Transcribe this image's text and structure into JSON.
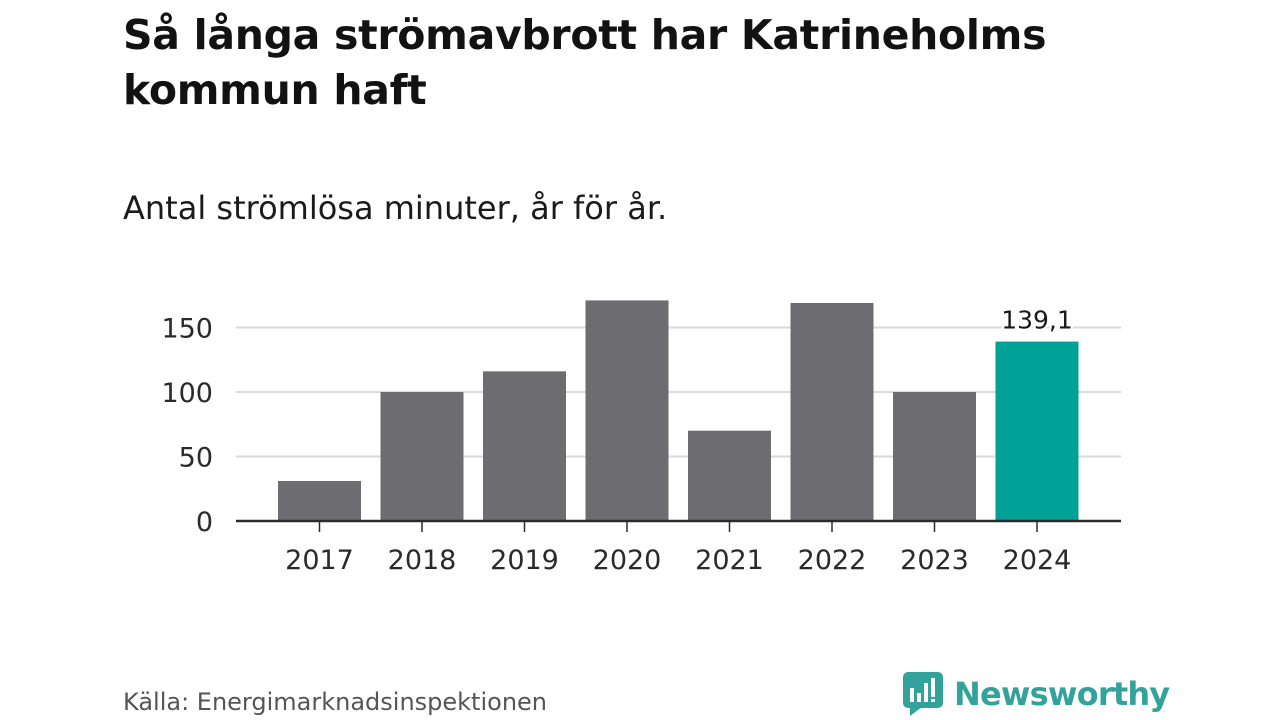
{
  "header": {
    "title": "Så långa strömavbrott har Katrineholms kommun haft",
    "subtitle": "Antal strömlösa minuter, år för år."
  },
  "footer": {
    "source": "Källa: Energimarknadsinspektionen",
    "brand": "Newsworthy"
  },
  "colors": {
    "bar": "#6d6c71",
    "highlight": "#00a196",
    "grid": "#d9d9d9",
    "axis": "#2b2b2b",
    "brand": "#33a29b"
  },
  "icons": {
    "brand": "newsworthy-logo-icon"
  },
  "chart_data": {
    "type": "bar",
    "title": "Så långa strömavbrott har Katrineholms kommun haft",
    "subtitle": "Antal strömlösa minuter, år för år.",
    "xlabel": "",
    "ylabel": "",
    "categories": [
      "2017",
      "2018",
      "2019",
      "2020",
      "2021",
      "2022",
      "2023",
      "2024"
    ],
    "values": [
      31,
      100,
      116,
      171,
      70,
      169,
      100,
      139.1
    ],
    "highlight_index": 7,
    "data_labels": [
      {
        "index": 7,
        "text": "139,1"
      }
    ],
    "ylim": [
      0,
      175
    ],
    "yticks": [
      0,
      50,
      100,
      150
    ],
    "grid": true,
    "legend": "none"
  }
}
